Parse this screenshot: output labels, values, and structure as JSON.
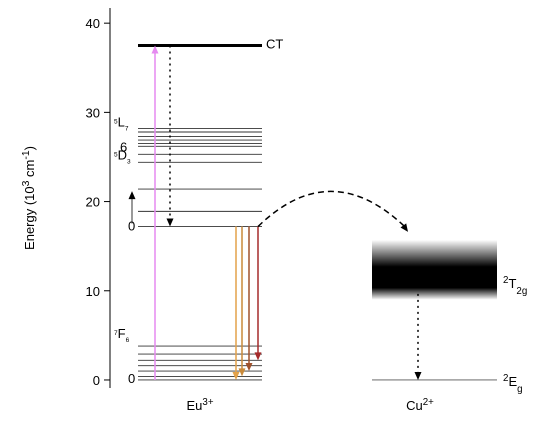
{
  "chart_data": {
    "type": "energy-level",
    "ylabel": [
      {
        "text": "Energy (10"
      },
      {
        "text": "3",
        "sup": true
      },
      {
        "text": " cm"
      },
      {
        "text": "-1",
        "sup": true
      },
      {
        "text": ")"
      }
    ],
    "ylim": [
      -0.9,
      41.7
    ],
    "yticks": [
      0,
      10,
      20,
      30,
      40
    ],
    "eu": {
      "label": [
        {
          "text": "Eu"
        },
        {
          "text": "3+",
          "sup": true
        }
      ],
      "ct": 37.5,
      "ct_label": "CT",
      "excited": [
        28.2,
        27.8,
        27.3,
        26.9,
        26.5,
        26.2,
        25.3,
        24.4,
        21.4,
        18.9,
        17.2
      ],
      "ground": [
        3.8,
        2.9,
        2.2,
        1.6,
        1.0,
        0.4,
        0
      ],
      "level_labels": [
        [
          {
            "text": "5",
            "sup": true
          },
          {
            "text": "L"
          },
          {
            "text": "7",
            "sub": true
          }
        ],
        [
          {
            "text": "6"
          }
        ],
        [
          {
            "text": "5",
            "sup": true
          },
          {
            "text": "D"
          },
          {
            "text": "3",
            "sub": true
          }
        ],
        [
          {
            "text": "0"
          }
        ],
        [
          {
            "text": "7",
            "sup": true
          },
          {
            "text": "F"
          },
          {
            "text": "6",
            "sub": true
          }
        ],
        [
          {
            "text": "0"
          }
        ]
      ]
    },
    "transitions": [
      {
        "from": 0,
        "to": 37.5,
        "color": "#e58af0",
        "style": "solid"
      },
      {
        "from": 37.5,
        "to": 17.2,
        "color": "#000000",
        "style": "dotted"
      },
      {
        "from": 17.2,
        "to": 0,
        "color": "#e3a24a",
        "style": "solid"
      },
      {
        "from": 17.2,
        "to": 0.4,
        "color": "#c98a3a",
        "style": "solid"
      },
      {
        "from": 17.2,
        "to": 1.0,
        "color": "#a0522d",
        "style": "solid"
      },
      {
        "from": 17.2,
        "to": 2.2,
        "color": "#a52a2a",
        "style": "solid"
      }
    ],
    "transfer": {
      "from": 17.2,
      "to": 15.7
    },
    "cu": {
      "label": [
        {
          "text": "Cu"
        },
        {
          "text": "2+",
          "sup": true
        }
      ],
      "band": [
        9.0,
        15.7
      ],
      "t2g": 11,
      "t2g_label": [
        {
          "text": "2",
          "sup": true
        },
        {
          "text": "T"
        },
        {
          "text": "2g",
          "sub": true
        }
      ],
      "eg": 0,
      "eg_label": [
        {
          "text": "2",
          "sup": true
        },
        {
          "text": "E"
        },
        {
          "text": "g",
          "sub": true
        }
      ]
    }
  }
}
